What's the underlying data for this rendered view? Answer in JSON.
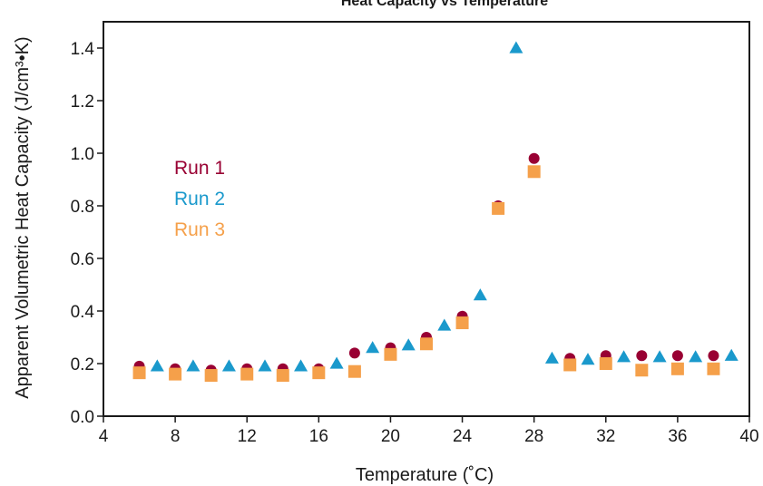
{
  "chart_data": {
    "type": "scatter",
    "title": "Heat Capacity vs Temperature",
    "xlabel": "Temperature (˚C)",
    "ylabel": "Apparent Volumetric Heat Capacity (J/cm³•K)",
    "xlim": [
      4,
      40
    ],
    "ylim": [
      0.0,
      1.5
    ],
    "xticks": [
      4,
      8,
      12,
      16,
      20,
      24,
      28,
      32,
      36,
      40
    ],
    "xtick_labels": [
      "4",
      "8",
      "12",
      "16",
      "20",
      "24",
      "28",
      "32",
      "36",
      "40"
    ],
    "yticks": [
      0.0,
      0.2,
      0.4,
      0.6,
      0.8,
      1.0,
      1.2,
      1.4
    ],
    "ytick_labels": [
      "0.0",
      "0.2",
      "0.4",
      "0.6",
      "0.8",
      "1.0",
      "1.2",
      "1.4"
    ],
    "grid": false,
    "legend_position": "upper-left",
    "series": [
      {
        "name": "Run 1",
        "marker": "circle",
        "color": "#990033",
        "x": [
          6,
          8,
          10,
          12,
          14,
          16,
          18,
          20,
          22,
          24,
          26,
          28,
          30,
          32,
          34,
          36,
          38
        ],
        "y": [
          0.19,
          0.18,
          0.175,
          0.18,
          0.18,
          0.18,
          0.24,
          0.26,
          0.3,
          0.38,
          0.8,
          0.98,
          0.22,
          0.23,
          0.23,
          0.23,
          0.23
        ]
      },
      {
        "name": "Run 2",
        "marker": "triangle",
        "color": "#1a99cc",
        "x": [
          7,
          9,
          11,
          13,
          15,
          17,
          19,
          21,
          23,
          25,
          27,
          29,
          31,
          33,
          35,
          37,
          39
        ],
        "y": [
          0.19,
          0.19,
          0.19,
          0.19,
          0.19,
          0.2,
          0.26,
          0.27,
          0.345,
          0.46,
          1.4,
          0.22,
          0.215,
          0.225,
          0.225,
          0.225,
          0.23
        ]
      },
      {
        "name": "Run 3",
        "marker": "square",
        "color": "#f5a04a",
        "x": [
          6,
          8,
          10,
          12,
          14,
          16,
          18,
          20,
          22,
          24,
          26,
          28,
          30,
          32,
          34,
          36,
          38
        ],
        "y": [
          0.165,
          0.16,
          0.155,
          0.16,
          0.155,
          0.165,
          0.17,
          0.235,
          0.275,
          0.355,
          0.79,
          0.93,
          0.195,
          0.2,
          0.175,
          0.18,
          0.18
        ]
      }
    ]
  }
}
